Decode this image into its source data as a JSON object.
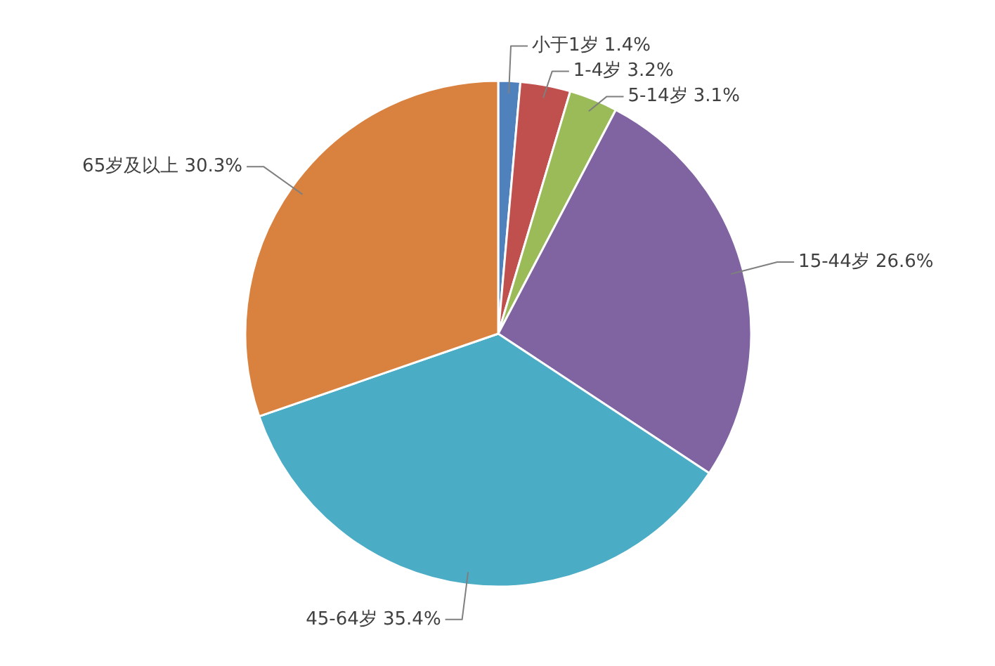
{
  "chart_data": {
    "type": "pie",
    "categories": [
      "小于1岁",
      "1-4岁",
      "5-14岁",
      "15-44岁",
      "45-64岁",
      "65岁及以上"
    ],
    "values": [
      1.4,
      3.2,
      3.1,
      26.6,
      35.4,
      30.3
    ],
    "value_labels": [
      "1.4%",
      "3.2%",
      "3.1%",
      "26.6%",
      "35.4%",
      "30.3%"
    ],
    "colors": [
      "#4f81bd",
      "#c0504d",
      "#9bbb59",
      "#8064a2",
      "#4bacc6",
      "#d9823f"
    ]
  }
}
